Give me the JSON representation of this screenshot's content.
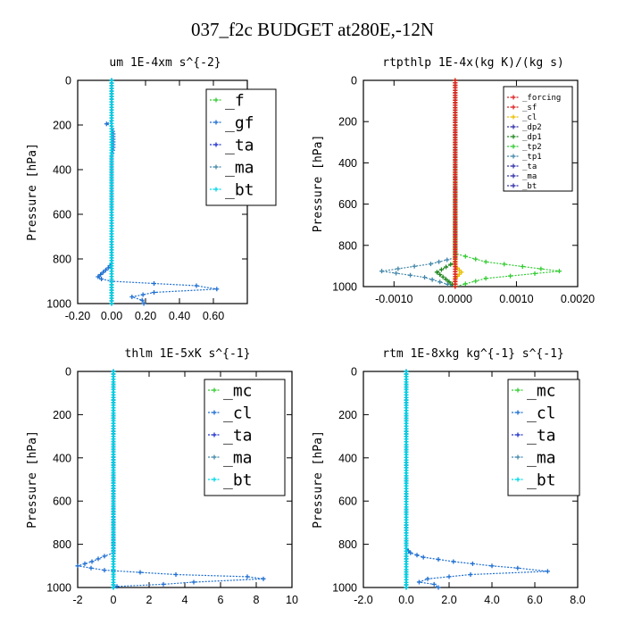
{
  "figure": {
    "title": "037_f2c  BUDGET at280E,-12N"
  },
  "colors": {
    "blue": "#1f6fd1",
    "green": "#33cc33",
    "cyan": "#00d8e8",
    "navy": "#2233cc",
    "red": "#dd2222",
    "yellow": "#e8c000",
    "dkgreen": "#228822",
    "slate": "#4488aa",
    "purple": "#3333aa"
  },
  "chart_data": [
    {
      "type": "line",
      "title": "um   1E-4xm s^{-2}",
      "ylabel": "Pressure [hPa]",
      "xlim": [
        -0.2,
        0.8
      ],
      "ylim": [
        1000,
        0
      ],
      "xticks": [
        "-0.20",
        "0.00",
        "0.20",
        "0.40",
        "0.60"
      ],
      "yticks": [
        "0",
        "200",
        "400",
        "600",
        "800",
        "1000"
      ],
      "legend": [
        "_f",
        "_gf",
        "_ta",
        "_ma",
        "_bt"
      ],
      "series": [
        {
          "name": "_f",
          "color": "green",
          "points": [
            [
              0,
              0
            ],
            [
              0,
              1000
            ]
          ]
        },
        {
          "name": "_gf",
          "color": "blue",
          "points": [
            [
              0,
              0
            ],
            [
              0,
              180
            ],
            [
              -0.03,
              195
            ],
            [
              0,
              205
            ],
            [
              0.01,
              240
            ],
            [
              0.01,
              300
            ],
            [
              0,
              340
            ],
            [
              0,
              820
            ],
            [
              -0.02,
              840
            ],
            [
              -0.05,
              860
            ],
            [
              -0.08,
              880
            ],
            [
              -0.06,
              890
            ],
            [
              0,
              900
            ],
            [
              0.25,
              910
            ],
            [
              0.5,
              920
            ],
            [
              0.62,
              935
            ],
            [
              0.25,
              950
            ],
            [
              0.12,
              970
            ],
            [
              0.18,
              985
            ],
            [
              0.19,
              1000
            ]
          ]
        },
        {
          "name": "_ta",
          "color": "navy",
          "points": [
            [
              0,
              0
            ],
            [
              0,
              1000
            ]
          ]
        },
        {
          "name": "_ma",
          "color": "slate",
          "points": [
            [
              0,
              0
            ],
            [
              0,
              1000
            ]
          ]
        },
        {
          "name": "_bt",
          "color": "cyan",
          "points": [
            [
              0,
              0
            ],
            [
              0,
              1000
            ]
          ]
        }
      ]
    },
    {
      "type": "line",
      "title": "rtpthlp   1E-4x(kg K)/(kg s)",
      "ylabel": "Pressure [hPa]",
      "xlim": [
        -0.0015,
        0.002
      ],
      "ylim": [
        1000,
        0
      ],
      "xticks": [
        "-0.0010",
        "0.0000",
        "0.0010",
        "0.0020"
      ],
      "yticks": [
        "0",
        "200",
        "400",
        "600",
        "800",
        "1000"
      ],
      "legend": [
        "_forcing",
        "_sf",
        "_cl",
        "_dp2",
        "_dp1",
        "_tp2",
        "_tp1",
        "_ta",
        "_ma",
        "_bt"
      ],
      "series": [
        {
          "name": "_tp2",
          "color": "green",
          "points": [
            [
              0,
              0
            ],
            [
              0,
              840
            ],
            [
              0.0005,
              880
            ],
            [
              0.0017,
              925
            ],
            [
              0.0005,
              960
            ],
            [
              0,
              1000
            ]
          ]
        },
        {
          "name": "_tp1",
          "color": "slate",
          "points": [
            [
              0,
              0
            ],
            [
              0,
              860
            ],
            [
              -0.0004,
              890
            ],
            [
              -0.0012,
              925
            ],
            [
              -0.0005,
              955
            ],
            [
              0,
              1000
            ]
          ]
        },
        {
          "name": "_dp1",
          "color": "dkgreen",
          "points": [
            [
              0,
              0
            ],
            [
              0,
              880
            ],
            [
              -0.0003,
              930
            ],
            [
              0,
              1000
            ]
          ]
        },
        {
          "name": "_cl",
          "color": "yellow",
          "points": [
            [
              0,
              0
            ],
            [
              0,
              900
            ],
            [
              0.0001,
              930
            ],
            [
              0,
              960
            ],
            [
              0,
              1000
            ]
          ]
        },
        {
          "name": "_forcing",
          "color": "red",
          "points": [
            [
              0,
              0
            ],
            [
              0,
              1000
            ]
          ]
        },
        {
          "name": "_sf",
          "color": "red",
          "points": [
            [
              0,
              0
            ],
            [
              0,
              1000
            ]
          ]
        }
      ]
    },
    {
      "type": "line",
      "title": "thlm   1E-5xK s^{-1}",
      "ylabel": "Pressure [hPa]",
      "xlim": [
        -2,
        10
      ],
      "ylim": [
        1000,
        0
      ],
      "xticks": [
        "-2",
        "0",
        "2",
        "4",
        "6",
        "8",
        "10"
      ],
      "yticks": [
        "0",
        "200",
        "400",
        "600",
        "800",
        "1000"
      ],
      "legend": [
        "_mc",
        "_cl",
        "_ta",
        "_ma",
        "_bt"
      ],
      "series": [
        {
          "name": "_mc",
          "color": "green",
          "points": [
            [
              0,
              0
            ],
            [
              0,
              1000
            ]
          ]
        },
        {
          "name": "_cl",
          "color": "blue",
          "points": [
            [
              0,
              0
            ],
            [
              0,
              840
            ],
            [
              -0.5,
              855
            ],
            [
              -1.2,
              880
            ],
            [
              -2,
              900
            ],
            [
              -0.5,
              920
            ],
            [
              3.5,
              940
            ],
            [
              7.5,
              950
            ],
            [
              8.4,
              960
            ],
            [
              4.5,
              975
            ],
            [
              2.8,
              985
            ],
            [
              0.2,
              995
            ],
            [
              0,
              1000
            ]
          ]
        },
        {
          "name": "_ta",
          "color": "navy",
          "points": [
            [
              0,
              0
            ],
            [
              0,
              1000
            ]
          ]
        },
        {
          "name": "_ma",
          "color": "slate",
          "points": [
            [
              0,
              0
            ],
            [
              0,
              1000
            ]
          ]
        },
        {
          "name": "_bt",
          "color": "cyan",
          "points": [
            [
              0,
              0
            ],
            [
              0,
              1000
            ]
          ]
        }
      ]
    },
    {
      "type": "line",
      "title": "rtm   1E-8xkg kg^{-1} s^{-1}",
      "ylabel": "Pressure [hPa]",
      "xlim": [
        -2,
        8
      ],
      "ylim": [
        1000,
        0
      ],
      "xticks": [
        "-2.0",
        "0.0",
        "2.0",
        "4.0",
        "6.0",
        "8.0"
      ],
      "yticks": [
        "0",
        "200",
        "400",
        "600",
        "800",
        "1000"
      ],
      "legend": [
        "_mc",
        "_cl",
        "_ta",
        "_ma",
        "_bt"
      ],
      "series": [
        {
          "name": "_mc",
          "color": "green",
          "points": [
            [
              0,
              0
            ],
            [
              0,
              1000
            ]
          ]
        },
        {
          "name": "_cl",
          "color": "blue",
          "points": [
            [
              0,
              0
            ],
            [
              0,
              820
            ],
            [
              0.2,
              840
            ],
            [
              0.8,
              860
            ],
            [
              2.2,
              880
            ],
            [
              4,
              900
            ],
            [
              5.2,
              910
            ],
            [
              6.6,
              925
            ],
            [
              3,
              940
            ],
            [
              1,
              960
            ],
            [
              0.6,
              975
            ],
            [
              1.3,
              985
            ],
            [
              1.5,
              1000
            ]
          ]
        },
        {
          "name": "_ta",
          "color": "navy",
          "points": [
            [
              0,
              0
            ],
            [
              0,
              1000
            ]
          ]
        },
        {
          "name": "_ma",
          "color": "slate",
          "points": [
            [
              0,
              0
            ],
            [
              0,
              1000
            ]
          ]
        },
        {
          "name": "_bt",
          "color": "cyan",
          "points": [
            [
              0,
              0
            ],
            [
              0,
              1000
            ]
          ]
        }
      ]
    }
  ]
}
